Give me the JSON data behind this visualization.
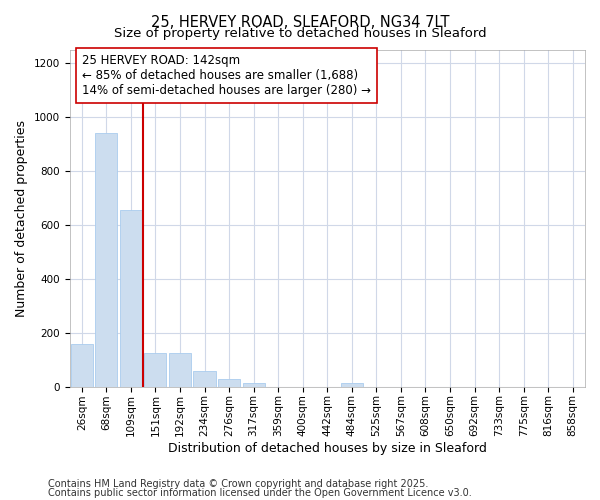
{
  "title_line1": "25, HERVEY ROAD, SLEAFORD, NG34 7LT",
  "title_line2": "Size of property relative to detached houses in Sleaford",
  "xlabel": "Distribution of detached houses by size in Sleaford",
  "ylabel": "Number of detached properties",
  "categories": [
    "26sqm",
    "68sqm",
    "109sqm",
    "151sqm",
    "192sqm",
    "234sqm",
    "276sqm",
    "317sqm",
    "359sqm",
    "400sqm",
    "442sqm",
    "484sqm",
    "525sqm",
    "567sqm",
    "608sqm",
    "650sqm",
    "692sqm",
    "733sqm",
    "775sqm",
    "816sqm",
    "858sqm"
  ],
  "values": [
    160,
    940,
    655,
    125,
    125,
    57,
    30,
    15,
    0,
    0,
    0,
    15,
    0,
    0,
    0,
    0,
    0,
    0,
    0,
    0,
    0
  ],
  "bar_color": "#ccddef",
  "bar_edge_color": "#aaccee",
  "vline_index": 3,
  "vline_color": "#cc0000",
  "annotation_text": "25 HERVEY ROAD: 142sqm\n← 85% of detached houses are smaller (1,688)\n14% of semi-detached houses are larger (280) →",
  "annotation_box_facecolor": "#ffffff",
  "annotation_box_edgecolor": "#cc0000",
  "ylim": [
    0,
    1250
  ],
  "yticks": [
    0,
    200,
    400,
    600,
    800,
    1000,
    1200
  ],
  "footnote_line1": "Contains HM Land Registry data © Crown copyright and database right 2025.",
  "footnote_line2": "Contains public sector information licensed under the Open Government Licence v3.0.",
  "bg_color": "#ffffff",
  "plot_bg_color": "#ffffff",
  "grid_color": "#d0d8e8",
  "title_fontsize": 10.5,
  "subtitle_fontsize": 9.5,
  "axis_label_fontsize": 9,
  "tick_fontsize": 7.5,
  "annotation_fontsize": 8.5,
  "footnote_fontsize": 7
}
